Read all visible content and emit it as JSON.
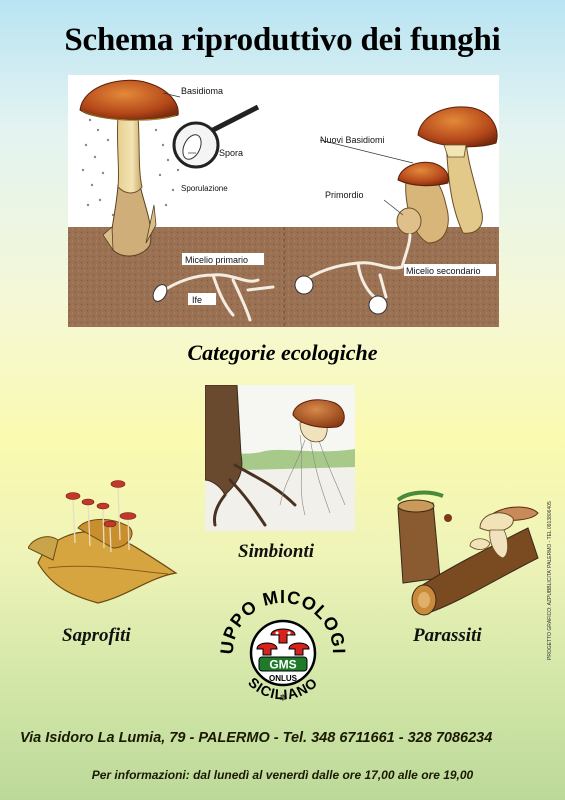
{
  "title": "Schema riproduttivo dei funghi",
  "diagram": {
    "labels": {
      "basidioma": "Basidioma",
      "spora": "Spora",
      "sporulazione": "Sporulazione",
      "nuovi_basidiomi": "Nuovi Basidiomi",
      "primordio": "Primordio",
      "micelio_primario": "Micelio primario",
      "ife": "Ife",
      "micelio_secondario": "Micelio secondario"
    }
  },
  "subtitle": "Categorie ecologiche",
  "categories": {
    "simbionti": "Simbionti",
    "saprofiti": "Saprofiti",
    "parassiti": "Parassiti"
  },
  "logo": {
    "ring_top": "GRUPPO MICOLOGICO",
    "ring_bottom": "SICILIANO",
    "center_1": "GMS",
    "center_2": "ONLUS"
  },
  "address": "Via Isidoro La Lumia, 79  -  PALERMO  -  Tel.  348 6711661  -  328 7086234",
  "info": "Per informazioni: dal lunedì al venerdì dalle ore 17,00 alle ore 19,00",
  "credit": "PROGETTO GRAFICO: AZPUBBLICITA' PALERMO - TEL 0913806405"
}
